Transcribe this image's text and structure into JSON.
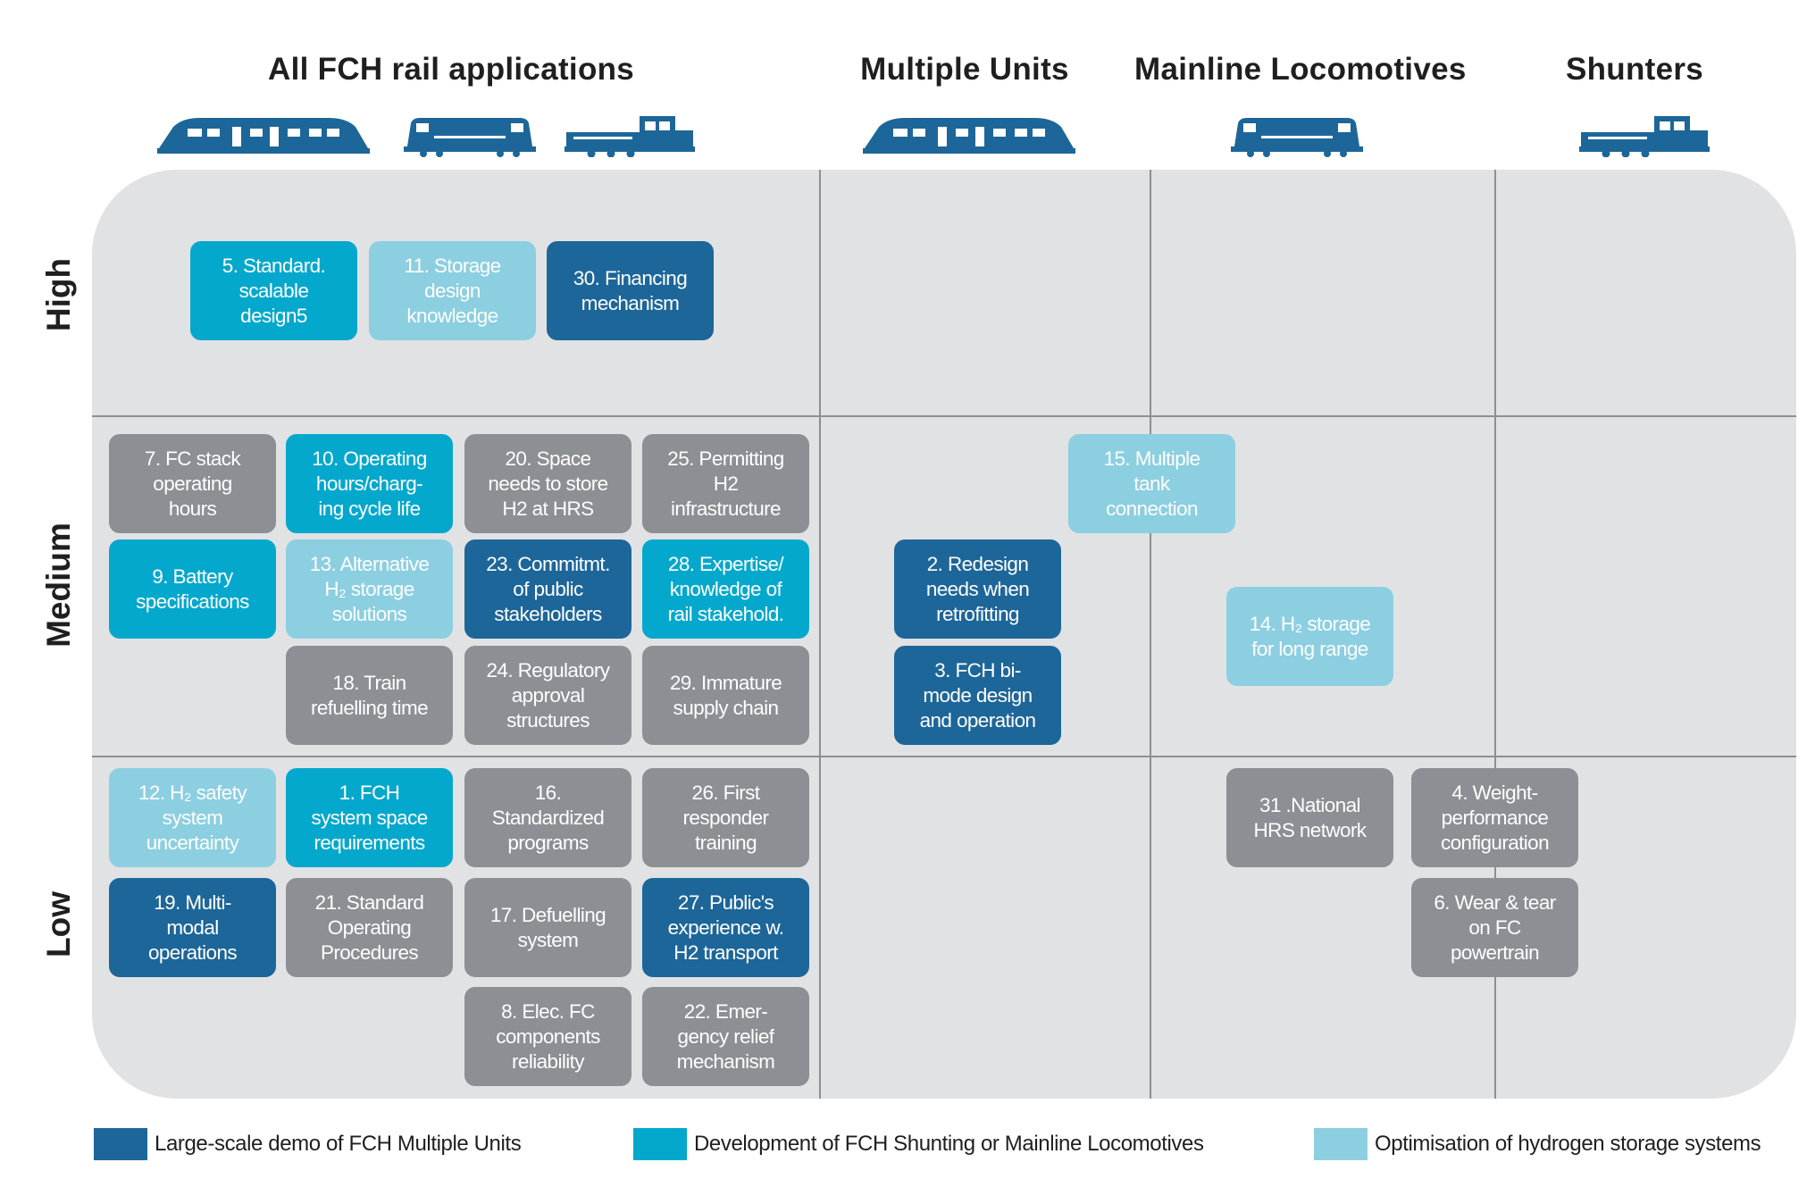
{
  "columns": {
    "all": "All FCH rail applications",
    "mu": "Multiple Units",
    "mainline": "Mainline Locomotives",
    "shunters": "Shunters"
  },
  "rows": {
    "high": "High",
    "medium": "Medium",
    "low": "Low"
  },
  "icons": [
    "multiple-unit-train-icon",
    "mainline-locomotive-icon",
    "shunter-locomotive-icon"
  ],
  "colors": {
    "panel": "#e1e2e4",
    "grey": "#8c8f93",
    "dark_blue": "#1d6699",
    "mid_blue": "#04a8cc",
    "light_blue": "#8ccfe1",
    "train": "#1d6699"
  },
  "boxes": {
    "b5": {
      "text": "5. Standard.\nscalable\ndesign5",
      "category": "mid"
    },
    "b11": {
      "text": "11. Storage\ndesign\nknowledge",
      "category": "light"
    },
    "b30": {
      "text": "30. Financing\nmechanism",
      "category": "dark"
    },
    "b7": {
      "text": "7. FC stack\noperating\nhours",
      "category": "grey"
    },
    "b10": {
      "text": "10. Operating\nhours/charg-\ning cycle life",
      "category": "mid"
    },
    "b20": {
      "text": "20. Space\nneeds to store\nH2 at HRS",
      "category": "grey"
    },
    "b25": {
      "text": "25. Permitting\nH2\ninfrastructure",
      "category": "grey"
    },
    "b9": {
      "text": "9. Battery\nspecifications",
      "category": "mid"
    },
    "b13": {
      "text": "13. Alternative\nH₂ storage\nsolutions",
      "category": "light"
    },
    "b23": {
      "text": "23. Commitmt.\nof public\nstakeholders",
      "category": "dark"
    },
    "b28": {
      "text": "28. Expertise/\nknowledge of\nrail stakehold.",
      "category": "mid"
    },
    "b18": {
      "text": "18. Train\nrefuelling time",
      "category": "grey"
    },
    "b24": {
      "text": "24. Regulatory\napproval\nstructures",
      "category": "grey"
    },
    "b29": {
      "text": "29. Immature\nsupply chain",
      "category": "grey"
    },
    "b2": {
      "text": "2. Redesign\nneeds when\nretrofitting",
      "category": "dark"
    },
    "b3": {
      "text": "3. FCH bi-\nmode design\nand operation",
      "category": "dark"
    },
    "b15": {
      "text": "15. Multiple\ntank\nconnection",
      "category": "light"
    },
    "b14": {
      "text": "14. H₂ storage\nfor long range",
      "category": "light"
    },
    "b12": {
      "text": "12. H₂ safety\nsystem\nuncertainty",
      "category": "light"
    },
    "b1": {
      "text": "1. FCH\nsystem space\nrequirements",
      "category": "mid"
    },
    "b16": {
      "text": "16.\nStandardized\nprograms",
      "category": "grey"
    },
    "b26": {
      "text": "26. First\nresponder\ntraining",
      "category": "grey"
    },
    "b19": {
      "text": "19. Multi-\nmodal\noperations",
      "category": "dark"
    },
    "b21": {
      "text": "21. Standard\nOperating\nProcedures",
      "category": "grey"
    },
    "b17": {
      "text": "17. Defuelling\nsystem",
      "category": "grey"
    },
    "b27": {
      "text": "27. Public's\nexperience w.\nH2 transport",
      "category": "dark"
    },
    "b8": {
      "text": "8. Elec. FC\ncomponents\nreliability",
      "category": "grey"
    },
    "b22": {
      "text": "22. Emer-\ngency relief\nmechanism",
      "category": "grey"
    },
    "b31": {
      "text": "31 .National\nHRS network",
      "category": "grey"
    },
    "b4": {
      "text": "4. Weight-\nperformance\nconfiguration",
      "category": "grey"
    },
    "b6": {
      "text": "6. Wear & tear\non FC\npowertrain",
      "category": "grey"
    }
  },
  "legend": {
    "dark": "Large-scale demo of FCH Multiple Units",
    "mid": "Development of FCH Shunting or Mainline Locomotives",
    "light": "Optimisation of hydrogen storage systems"
  }
}
